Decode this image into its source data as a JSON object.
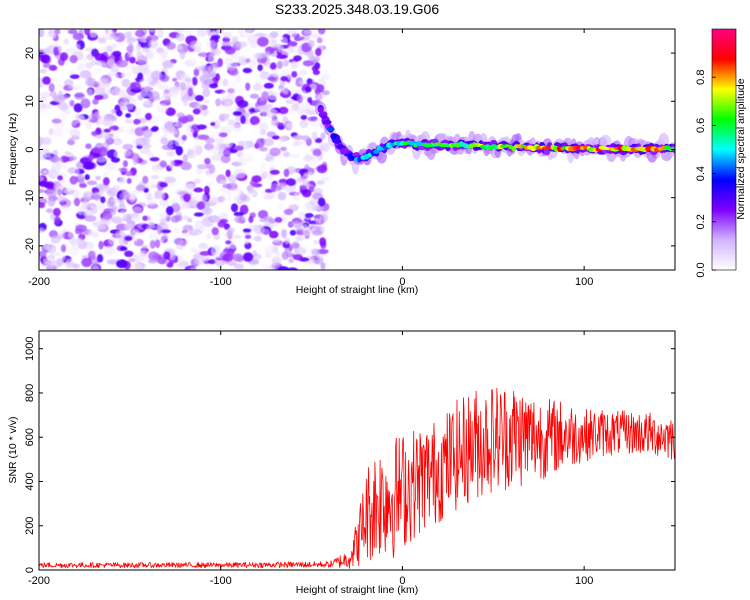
{
  "title": "S233.2025.348.03.19.G06",
  "chart_data": [
    {
      "type": "heatmap",
      "title": "S233.2025.348.03.19.G06",
      "xlabel": "Height of straight line (km)",
      "ylabel": "Frequency (Hz)",
      "xlim": [
        -200,
        150
      ],
      "ylim": [
        -25,
        25
      ],
      "xticks": [
        -200,
        -100,
        0,
        100
      ],
      "yticks": [
        20,
        10,
        0,
        -10,
        -20
      ],
      "colorbar": {
        "label": "Normalized spectral amplitude",
        "range": [
          0,
          1
        ],
        "ticks": [
          0.0,
          0.2,
          0.4,
          0.6,
          0.8
        ],
        "colors": [
          "#ffffff",
          "#d2b4ff",
          "#8000ff",
          "#0000ff",
          "#00ffff",
          "#00ff00",
          "#ffff00",
          "#ff0000",
          "#ff0080"
        ]
      },
      "noise_region_x": [
        -200,
        -42
      ],
      "ridge": {
        "x": [
          -45,
          -42,
          -38,
          -35,
          -32,
          -28,
          -24,
          -20,
          -15,
          -10,
          -5,
          0,
          10,
          20,
          40,
          60,
          80,
          100,
          120,
          150
        ],
        "y": [
          8,
          6,
          3,
          1,
          -0.5,
          -1.5,
          -2,
          -1.5,
          -0.5,
          0.5,
          1,
          1.5,
          1,
          1,
          0.8,
          0.5,
          0.3,
          0.2,
          0.1,
          0.2
        ],
        "amplitude": [
          0.25,
          0.35,
          0.4,
          0.35,
          0.3,
          0.4,
          0.5,
          0.5,
          0.45,
          0.5,
          0.55,
          0.6,
          0.6,
          0.65,
          0.7,
          0.75,
          0.8,
          0.85,
          0.85,
          0.75
        ]
      }
    },
    {
      "type": "line",
      "xlabel": "Height of straight line (km)",
      "ylabel": "SNR (10 * v/v)",
      "xlim": [
        -200,
        150
      ],
      "ylim": [
        0,
        1080
      ],
      "xticks": [
        -200,
        -100,
        0,
        100
      ],
      "yticks": [
        0,
        200,
        400,
        600,
        800,
        1000
      ],
      "color": "#ff0000",
      "series": [
        {
          "name": "SNR",
          "envelope_x": [
            -200,
            -100,
            -40,
            -30,
            -25,
            -20,
            -15,
            -10,
            -5,
            0,
            10,
            20,
            30,
            40,
            50,
            60,
            70,
            80,
            90,
            100,
            110,
            120,
            130,
            140,
            150
          ],
          "envelope_mean": [
            22,
            22,
            25,
            50,
            120,
            250,
            300,
            330,
            330,
            360,
            410,
            450,
            520,
            570,
            600,
            610,
            600,
            600,
            610,
            610,
            620,
            620,
            620,
            610,
            600
          ],
          "envelope_spread": [
            12,
            12,
            14,
            45,
            110,
            220,
            260,
            270,
            280,
            270,
            250,
            240,
            250,
            260,
            250,
            250,
            220,
            180,
            160,
            120,
            110,
            100,
            100,
            100,
            110
          ]
        }
      ]
    }
  ]
}
